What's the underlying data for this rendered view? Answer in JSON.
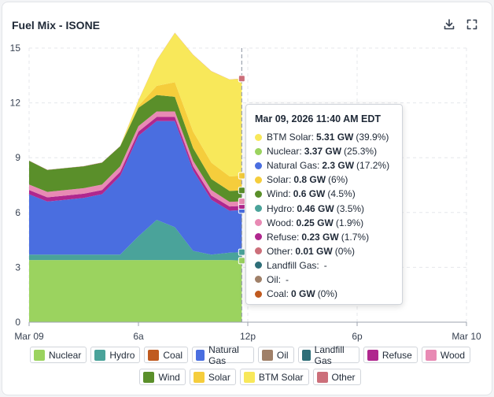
{
  "title": "Fuel Mix - ISONE",
  "icons": {
    "download": "download-icon",
    "expand": "expand-icon"
  },
  "chart_data": {
    "type": "area",
    "stacked": true,
    "title": "Fuel Mix - ISONE",
    "xlabel": "",
    "ylabel": "",
    "x_hours": [
      0,
      1,
      2,
      3,
      4,
      5,
      6,
      7,
      8,
      9,
      10,
      11,
      11.67
    ],
    "xlim": [
      0,
      24
    ],
    "ylim": [
      0,
      15
    ],
    "yticks": [
      0,
      3,
      6,
      9,
      12,
      15
    ],
    "xticks": [
      {
        "hour": 0,
        "label": "Mar 09"
      },
      {
        "hour": 6,
        "label": "6a"
      },
      {
        "hour": 12,
        "label": "12p"
      },
      {
        "hour": 18,
        "label": "6p"
      },
      {
        "hour": 24,
        "label": "Mar 10"
      }
    ],
    "series": [
      {
        "name": "Nuclear",
        "color": "#9bd35f",
        "values": [
          3.4,
          3.4,
          3.4,
          3.4,
          3.4,
          3.4,
          3.4,
          3.4,
          3.4,
          3.4,
          3.4,
          3.4,
          3.37
        ]
      },
      {
        "name": "Hydro",
        "color": "#4aa39a",
        "values": [
          0.3,
          0.3,
          0.3,
          0.3,
          0.3,
          0.3,
          1.3,
          2.2,
          1.8,
          0.5,
          0.3,
          0.4,
          0.46
        ]
      },
      {
        "name": "Coal",
        "color": "#c05a1f",
        "values": [
          0,
          0,
          0,
          0,
          0,
          0,
          0,
          0,
          0,
          0,
          0,
          0,
          0
        ]
      },
      {
        "name": "Natural Gas",
        "color": "#4a6ee0",
        "values": [
          3.3,
          2.9,
          3.0,
          3.1,
          3.3,
          4.3,
          5.5,
          5.4,
          5.8,
          4.4,
          3.0,
          2.3,
          2.3
        ]
      },
      {
        "name": "Oil",
        "color": "#a08068",
        "values": [
          0,
          0,
          0,
          0,
          0,
          0,
          0,
          0,
          0,
          0,
          0,
          0,
          0
        ]
      },
      {
        "name": "Landfill Gas",
        "color": "#2e6e78",
        "values": [
          0,
          0,
          0,
          0,
          0,
          0,
          0,
          0,
          0,
          0,
          0,
          0,
          0
        ]
      },
      {
        "name": "Refuse",
        "color": "#b0278e",
        "values": [
          0.23,
          0.23,
          0.23,
          0.23,
          0.23,
          0.23,
          0.23,
          0.23,
          0.23,
          0.23,
          0.23,
          0.23,
          0.23
        ]
      },
      {
        "name": "Wood",
        "color": "#e88ab4",
        "values": [
          0.3,
          0.3,
          0.3,
          0.3,
          0.3,
          0.3,
          0.3,
          0.3,
          0.3,
          0.3,
          0.3,
          0.25,
          0.25
        ]
      },
      {
        "name": "Wind",
        "color": "#5a8f2a",
        "values": [
          1.3,
          1.2,
          1.2,
          1.2,
          1.2,
          1.1,
          1.0,
          0.9,
          0.8,
          0.7,
          0.6,
          0.6,
          0.6
        ]
      },
      {
        "name": "Solar",
        "color": "#f5cd3c",
        "values": [
          0,
          0,
          0,
          0,
          0,
          0,
          0.1,
          0.5,
          0.8,
          0.9,
          0.9,
          0.8,
          0.8
        ]
      },
      {
        "name": "BTM Solar",
        "color": "#f8e85a",
        "values": [
          0,
          0,
          0,
          0,
          0,
          0,
          0.3,
          1.4,
          2.7,
          4.2,
          5.0,
          5.3,
          5.31
        ]
      },
      {
        "name": "Other",
        "color": "#cc6f7a",
        "values": [
          0.01,
          0.01,
          0.01,
          0.01,
          0.01,
          0.01,
          0.01,
          0.01,
          0.01,
          0.01,
          0.01,
          0.01,
          0.01
        ]
      }
    ],
    "hover_hour": 11.67
  },
  "tooltip": {
    "title": "Mar 09, 2026 11:40 AM EDT",
    "rows": [
      {
        "name": "BTM Solar:",
        "value": "5.31 GW",
        "pct": "(39.9%)",
        "color": "#f8e85a"
      },
      {
        "name": "Nuclear:",
        "value": "3.37 GW",
        "pct": "(25.3%)",
        "color": "#9bd35f"
      },
      {
        "name": "Natural Gas:",
        "value": "2.3 GW",
        "pct": "(17.2%)",
        "color": "#4a6ee0"
      },
      {
        "name": "Solar:",
        "value": "0.8 GW",
        "pct": "(6%)",
        "color": "#f5cd3c"
      },
      {
        "name": "Wind:",
        "value": "0.6 GW",
        "pct": "(4.5%)",
        "color": "#5a8f2a"
      },
      {
        "name": "Hydro:",
        "value": "0.46 GW",
        "pct": "(3.5%)",
        "color": "#4aa39a"
      },
      {
        "name": "Wood:",
        "value": "0.25 GW",
        "pct": "(1.9%)",
        "color": "#e88ab4"
      },
      {
        "name": "Refuse:",
        "value": "0.23 GW",
        "pct": "(1.7%)",
        "color": "#b0278e"
      },
      {
        "name": "Other:",
        "value": "0.01 GW",
        "pct": "(0%)",
        "color": "#cc6f7a"
      },
      {
        "name": "Landfill Gas:",
        "value": "",
        "pct": "-",
        "color": "#2e6e78"
      },
      {
        "name": "Oil:",
        "value": "",
        "pct": "-",
        "color": "#a08068"
      },
      {
        "name": "Coal:",
        "value": "0 GW",
        "pct": "(0%)",
        "color": "#c05a1f"
      }
    ]
  },
  "legend": {
    "row1": [
      {
        "name": "Nuclear",
        "color": "#9bd35f"
      },
      {
        "name": "Hydro",
        "color": "#4aa39a"
      },
      {
        "name": "Coal",
        "color": "#c05a1f"
      },
      {
        "name": "Natural Gas",
        "color": "#4a6ee0"
      },
      {
        "name": "Oil",
        "color": "#a08068"
      },
      {
        "name": "Landfill Gas",
        "color": "#2e6e78"
      },
      {
        "name": "Refuse",
        "color": "#b0278e"
      },
      {
        "name": "Wood",
        "color": "#e88ab4"
      }
    ],
    "row2": [
      {
        "name": "Wind",
        "color": "#5a8f2a"
      },
      {
        "name": "Solar",
        "color": "#f5cd3c"
      },
      {
        "name": "BTM Solar",
        "color": "#f8e85a"
      },
      {
        "name": "Other",
        "color": "#cc6f7a"
      }
    ]
  }
}
